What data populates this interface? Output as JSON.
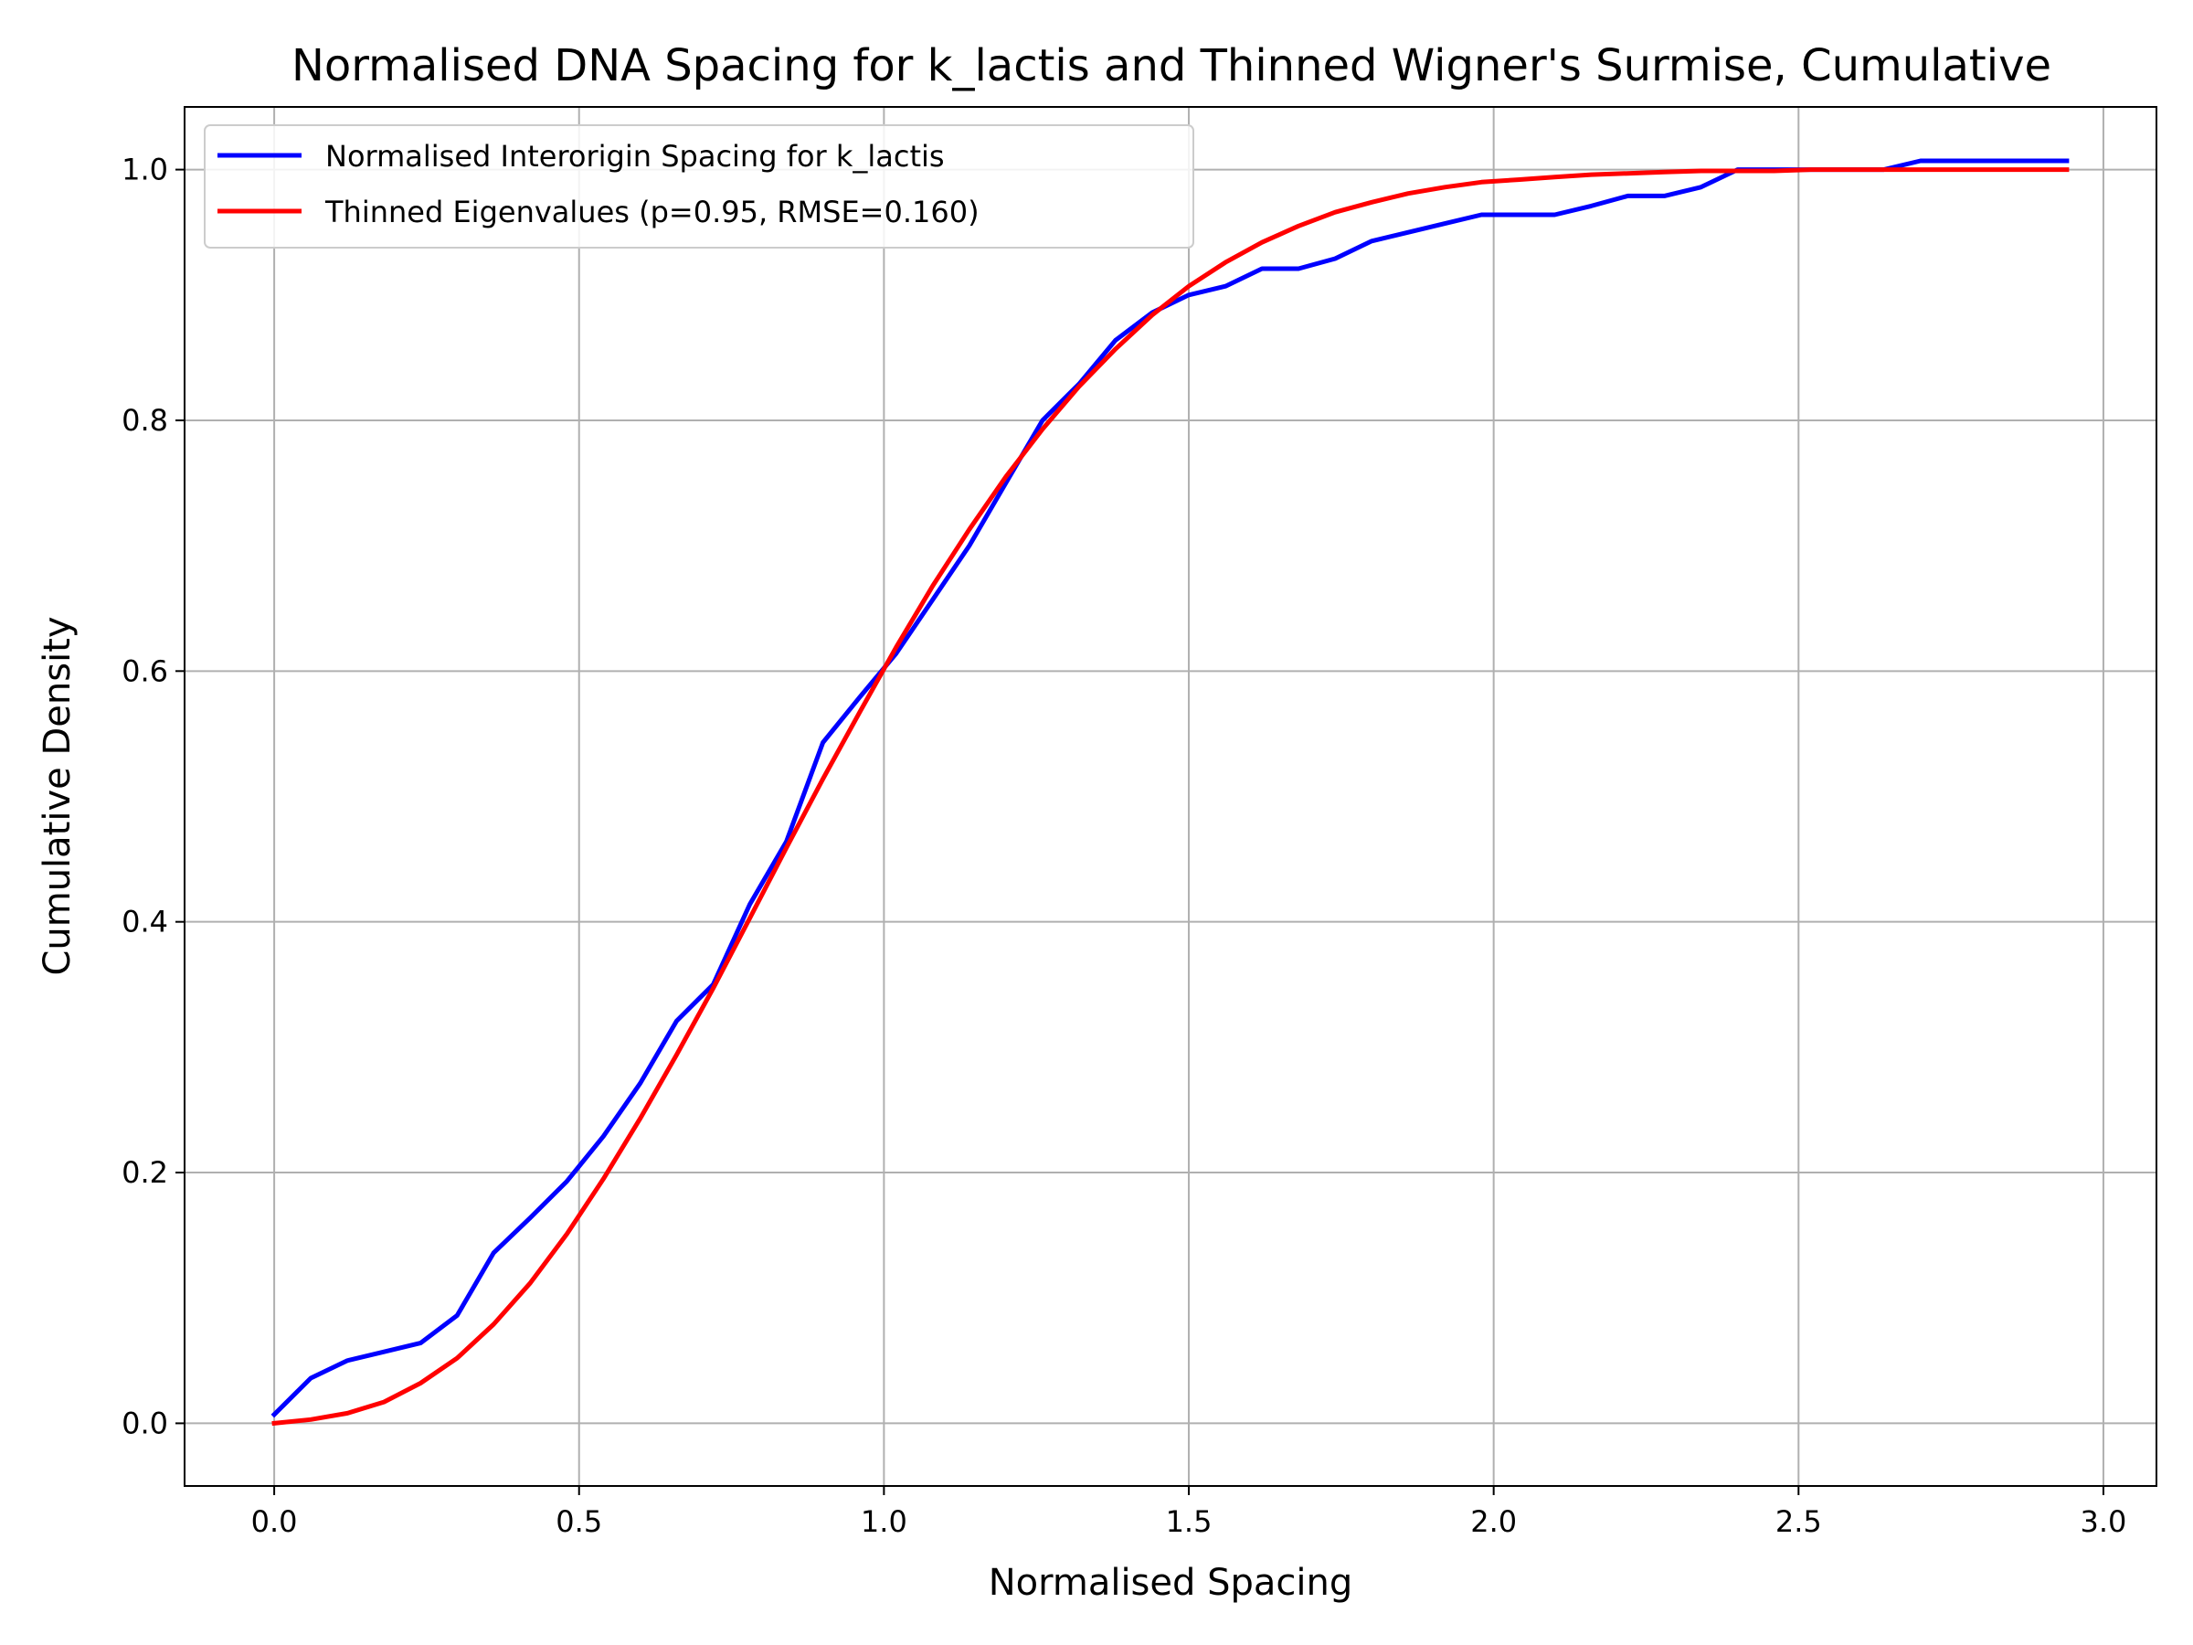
{
  "chart_data": {
    "type": "line",
    "title": "Normalised DNA Spacing for k_lactis and Thinned Wigner's Surmise, Cumulative",
    "xlabel": "Normalised Spacing",
    "ylabel": "Cumulative Density",
    "xlim": [
      -0.147,
      3.087
    ],
    "ylim": [
      -0.05,
      1.05
    ],
    "xticks": [
      0.0,
      0.5,
      1.0,
      1.5,
      2.0,
      2.5,
      3.0
    ],
    "xtick_labels": [
      "0.0",
      "0.5",
      "1.0",
      "1.5",
      "2.0",
      "2.5",
      "3.0"
    ],
    "yticks": [
      0.0,
      0.2,
      0.4,
      0.6,
      0.8,
      1.0
    ],
    "ytick_labels": [
      "0.0",
      "0.2",
      "0.4",
      "0.6",
      "0.8",
      "1.0"
    ],
    "grid": true,
    "legend_position": "upper-left",
    "series": [
      {
        "name": "Normalised Interorigin Spacing for k_lactis",
        "color": "#0000ff",
        "x": [
          0.0,
          0.06,
          0.12,
          0.18,
          0.24,
          0.3,
          0.36,
          0.42,
          0.48,
          0.54,
          0.6,
          0.66,
          0.72,
          0.78,
          0.84,
          0.9,
          0.96,
          1.02,
          1.08,
          1.14,
          1.2,
          1.26,
          1.32,
          1.38,
          1.44,
          1.5,
          1.56,
          1.62,
          1.68,
          1.74,
          1.8,
          1.86,
          1.92,
          1.98,
          2.04,
          2.1,
          2.16,
          2.22,
          2.28,
          2.34,
          2.4,
          2.46,
          2.52,
          2.58,
          2.64,
          2.7,
          2.76,
          2.82,
          2.88,
          2.94
        ],
        "y": [
          0.007,
          0.036,
          0.05,
          0.057,
          0.064,
          0.086,
          0.136,
          0.164,
          0.193,
          0.229,
          0.271,
          0.321,
          0.35,
          0.414,
          0.464,
          0.543,
          0.579,
          0.614,
          0.657,
          0.7,
          0.75,
          0.8,
          0.829,
          0.864,
          0.886,
          0.9,
          0.907,
          0.921,
          0.921,
          0.929,
          0.943,
          0.95,
          0.957,
          0.964,
          0.964,
          0.964,
          0.971,
          0.979,
          0.979,
          0.986,
          1.0,
          1.0,
          1.0,
          1.0,
          1.0,
          1.007,
          1.007,
          1.007,
          1.007,
          1.007
        ]
      },
      {
        "name": "Thinned Eigenvalues (p=0.95, RMSE=0.160)",
        "color": "#ff0000",
        "x": [
          0.0,
          0.06,
          0.12,
          0.18,
          0.24,
          0.3,
          0.36,
          0.42,
          0.48,
          0.54,
          0.6,
          0.66,
          0.72,
          0.78,
          0.84,
          0.9,
          0.96,
          1.02,
          1.08,
          1.14,
          1.2,
          1.26,
          1.32,
          1.38,
          1.44,
          1.5,
          1.56,
          1.62,
          1.68,
          1.74,
          1.8,
          1.86,
          1.92,
          1.98,
          2.04,
          2.1,
          2.16,
          2.22,
          2.28,
          2.34,
          2.4,
          2.46,
          2.52,
          2.58,
          2.64,
          2.7,
          2.76,
          2.82,
          2.88,
          2.94
        ],
        "y": [
          0.0,
          0.003,
          0.008,
          0.017,
          0.032,
          0.052,
          0.079,
          0.112,
          0.151,
          0.195,
          0.243,
          0.294,
          0.347,
          0.403,
          0.459,
          0.514,
          0.567,
          0.619,
          0.668,
          0.713,
          0.755,
          0.793,
          0.827,
          0.857,
          0.884,
          0.907,
          0.926,
          0.942,
          0.955,
          0.966,
          0.974,
          0.981,
          0.986,
          0.99,
          0.992,
          0.994,
          0.996,
          0.997,
          0.998,
          0.999,
          0.999,
          0.999,
          1.0,
          1.0,
          1.0,
          1.0,
          1.0,
          1.0,
          1.0,
          1.0
        ]
      }
    ]
  }
}
